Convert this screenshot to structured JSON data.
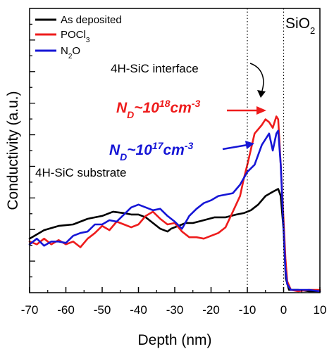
{
  "chart_data": {
    "type": "line",
    "xlabel": "Depth (nm)",
    "ylabel": "Conductivity (a.u.)",
    "xlim": [
      -70,
      10
    ],
    "ylim": [
      0,
      100
    ],
    "xticks": [
      -70,
      -60,
      -50,
      -40,
      -30,
      -20,
      -10,
      0,
      10
    ],
    "xtick_labels": [
      "-70",
      "-60",
      "-50",
      "-40",
      "-30",
      "-20",
      "-10",
      "0",
      "10"
    ],
    "y_minor_count": 18,
    "y_tick_labels_shown": false,
    "grid": false,
    "vlines": [
      -10,
      0
    ],
    "legend_position": "top-left",
    "region_label": {
      "text": "SiO",
      "sub": "2"
    },
    "annotations": {
      "interface": "4H-SiC interface",
      "substrate": "4H-SiC substrate",
      "nd_high": {
        "base": "N",
        "sub": "D",
        "mid": "~10",
        "sup": "18",
        "unit": "cm",
        "unit_sup": "-3",
        "color": "#ee1c1c"
      },
      "nd_low": {
        "base": "N",
        "sub": "D",
        "mid": "~10",
        "sup": "17",
        "unit": "cm",
        "unit_sup": "-3",
        "color": "#1616d6"
      }
    },
    "series": [
      {
        "name": "As deposited",
        "legend": {
          "base": "As deposited",
          "sub": ""
        },
        "color": "#000000",
        "points": [
          [
            -70,
            19
          ],
          [
            -66,
            22
          ],
          [
            -62,
            23.5
          ],
          [
            -58,
            24
          ],
          [
            -54,
            26
          ],
          [
            -50,
            27
          ],
          [
            -47,
            28.5
          ],
          [
            -44,
            28
          ],
          [
            -42,
            27.5
          ],
          [
            -40,
            27.5
          ],
          [
            -38,
            26.5
          ],
          [
            -36,
            24.5
          ],
          [
            -34,
            22.5
          ],
          [
            -32,
            21.5
          ],
          [
            -31,
            22.5
          ],
          [
            -29,
            23.5
          ],
          [
            -27,
            24.5
          ],
          [
            -25,
            24.5
          ],
          [
            -22,
            25.5
          ],
          [
            -19,
            26.5
          ],
          [
            -16,
            26.5
          ],
          [
            -13,
            27.5
          ],
          [
            -11,
            28
          ],
          [
            -9,
            29
          ],
          [
            -7,
            31
          ],
          [
            -5,
            34
          ],
          [
            -3,
            35.5
          ],
          [
            -1.5,
            36.5
          ],
          [
            -0.8,
            34
          ],
          [
            0,
            22
          ],
          [
            0.6,
            5
          ],
          [
            1.5,
            1
          ],
          [
            4,
            1
          ],
          [
            7,
            0.5
          ],
          [
            10,
            0.5
          ]
        ]
      },
      {
        "name": "POCl3",
        "legend": {
          "base": "POCl",
          "sub": "3"
        },
        "color": "#ee1c1c",
        "points": [
          [
            -70,
            18
          ],
          [
            -68,
            17
          ],
          [
            -66,
            19
          ],
          [
            -64,
            17
          ],
          [
            -62,
            18.5
          ],
          [
            -60,
            17
          ],
          [
            -58,
            18
          ],
          [
            -56,
            16
          ],
          [
            -54,
            19
          ],
          [
            -52,
            21
          ],
          [
            -50,
            23.5
          ],
          [
            -48,
            22
          ],
          [
            -46,
            25
          ],
          [
            -44,
            24
          ],
          [
            -42,
            23
          ],
          [
            -40,
            24
          ],
          [
            -38,
            27
          ],
          [
            -36,
            28.5
          ],
          [
            -34,
            26
          ],
          [
            -32,
            24
          ],
          [
            -30,
            24.5
          ],
          [
            -28,
            21.5
          ],
          [
            -26,
            19.5
          ],
          [
            -24,
            19.5
          ],
          [
            -22,
            19
          ],
          [
            -20,
            20
          ],
          [
            -18,
            21
          ],
          [
            -16,
            23
          ],
          [
            -14,
            28.5
          ],
          [
            -12,
            34
          ],
          [
            -11,
            40
          ],
          [
            -10,
            45
          ],
          [
            -8,
            56
          ],
          [
            -6,
            59
          ],
          [
            -5,
            61
          ],
          [
            -4,
            60
          ],
          [
            -3,
            58
          ],
          [
            -2,
            62
          ],
          [
            -1.5,
            61
          ],
          [
            -0.8,
            45
          ],
          [
            0,
            25
          ],
          [
            0.5,
            12
          ],
          [
            1,
            4
          ],
          [
            2,
            1
          ],
          [
            4,
            0.5
          ],
          [
            7,
            1
          ],
          [
            10,
            1
          ]
        ]
      },
      {
        "name": "N2O",
        "legend": {
          "base": "N",
          "sub": "2",
          "tail": "O"
        },
        "color": "#1616d6",
        "points": [
          [
            -70,
            17
          ],
          [
            -68,
            19
          ],
          [
            -66,
            16.5
          ],
          [
            -64,
            18
          ],
          [
            -62,
            18
          ],
          [
            -60,
            17.5
          ],
          [
            -58,
            20
          ],
          [
            -56,
            21
          ],
          [
            -54,
            21.5
          ],
          [
            -52,
            24
          ],
          [
            -50,
            24
          ],
          [
            -48,
            25.5
          ],
          [
            -46,
            25
          ],
          [
            -44,
            27.5
          ],
          [
            -42,
            30
          ],
          [
            -40,
            31
          ],
          [
            -38,
            30
          ],
          [
            -36,
            29
          ],
          [
            -34,
            29.5
          ],
          [
            -32,
            27
          ],
          [
            -30,
            25
          ],
          [
            -28,
            22.5
          ],
          [
            -26,
            27
          ],
          [
            -24,
            29.5
          ],
          [
            -22,
            31.5
          ],
          [
            -20,
            32.5
          ],
          [
            -18,
            34
          ],
          [
            -16,
            34.5
          ],
          [
            -14,
            35
          ],
          [
            -12,
            38
          ],
          [
            -10,
            42.5
          ],
          [
            -8,
            45
          ],
          [
            -6,
            52
          ],
          [
            -5,
            54
          ],
          [
            -4,
            56
          ],
          [
            -3,
            50
          ],
          [
            -2,
            56
          ],
          [
            -1.5,
            57
          ],
          [
            -0.8,
            45
          ],
          [
            0,
            22
          ],
          [
            0.5,
            8
          ],
          [
            1,
            3
          ],
          [
            2,
            1
          ],
          [
            4,
            1
          ],
          [
            7,
            1
          ],
          [
            10,
            0.5
          ]
        ]
      }
    ]
  }
}
